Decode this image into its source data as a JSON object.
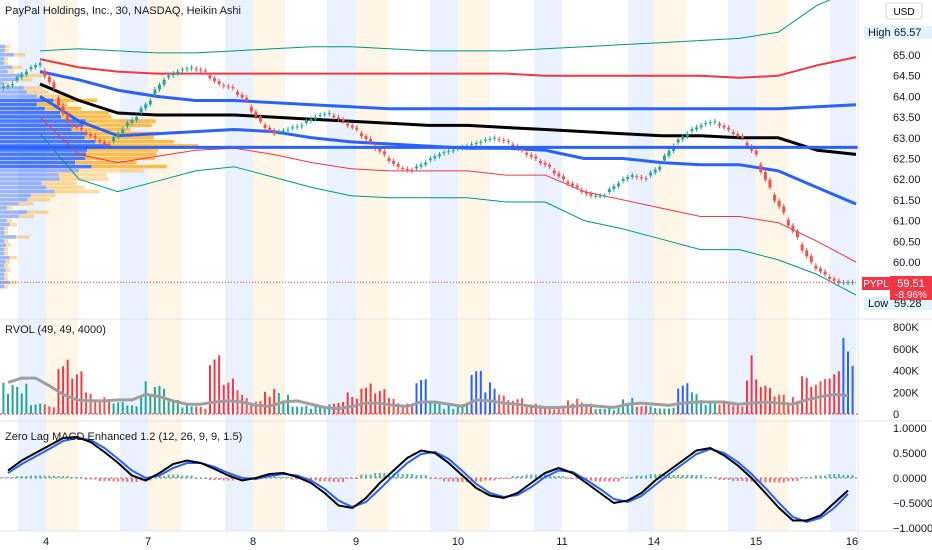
{
  "header": {
    "symbol_title": "PayPal Holdings, Inc., 30, NASDAQ, Heikin Ashi",
    "currency": "USD"
  },
  "price_panel": {
    "high_label": "High",
    "high_value": "65.57",
    "low_label": "Low",
    "low_value": "59.28",
    "ticker_badge": "PYPL",
    "last_price": "59.51",
    "change_pct": "-8.96%",
    "colors": {
      "up": "#26a69a",
      "down": "#ef5350",
      "badge": "#f23645"
    }
  },
  "rvol_panel": {
    "title": "RVOL (49, 49, 4000)",
    "axis_labels": [
      "800K",
      "600K",
      "400K",
      "200K",
      "0"
    ]
  },
  "macd_panel": {
    "title": "Zero Lag MACD Enhanced 1.2 (12, 26, 9, 9, 1.5)",
    "axis_labels": [
      "1.0000",
      "0.5000",
      "0.0000",
      "−0.5000",
      "−1.0000"
    ]
  },
  "time_axis": {
    "labels": [
      "4",
      "7",
      "8",
      "9",
      "10",
      "11",
      "14",
      "15",
      "16"
    ]
  },
  "chart_data": [
    {
      "type": "line",
      "name": "price",
      "candle_style": "Heikin Ashi",
      "y_ticks": [
        65.0,
        64.5,
        64.0,
        63.5,
        63.0,
        62.5,
        62.0,
        61.5,
        61.0,
        60.5,
        60.0
      ],
      "ylim": [
        59.0,
        66.0
      ],
      "x_labels": [
        "4",
        "7",
        "8",
        "9",
        "10",
        "11",
        "14",
        "15",
        "16"
      ],
      "close": [
        64.3,
        64.6,
        64.8,
        64.2,
        63.4,
        63.2,
        63.0,
        62.8,
        63.2,
        63.5,
        63.9,
        64.4,
        64.6,
        64.7,
        64.6,
        64.3,
        64.2,
        63.9,
        63.4,
        63.1,
        63.2,
        63.3,
        63.5,
        63.6,
        63.4,
        63.2,
        62.9,
        62.6,
        62.3,
        62.2,
        62.4,
        62.6,
        62.7,
        62.8,
        62.9,
        63.0,
        62.9,
        62.7,
        62.5,
        62.3,
        62.0,
        61.8,
        61.6,
        61.6,
        61.9,
        62.1,
        62.0,
        62.3,
        62.8,
        63.1,
        63.3,
        63.4,
        63.2,
        63.0,
        62.6,
        61.8,
        61.2,
        60.6,
        60.0,
        59.7,
        59.5,
        59.51
      ],
      "bands": [
        {
          "values": [
            65.1,
            65.15,
            65.1,
            65.05,
            65.05,
            65.1,
            65.15,
            65.2,
            65.2,
            65.15,
            65.1,
            65.1,
            65.1,
            65.15,
            65.2,
            65.25,
            65.3,
            65.35,
            65.4,
            65.55,
            66.2,
            66.6
          ],
          "color": "#009688"
        },
        {
          "values": [
            64.9,
            64.7,
            64.6,
            64.55,
            64.55,
            64.55,
            64.55,
            64.55,
            64.55,
            64.55,
            64.55,
            64.55,
            64.55,
            64.5,
            64.5,
            64.5,
            64.5,
            64.5,
            64.45,
            64.5,
            64.75,
            64.95
          ],
          "color": "#f23645"
        },
        {
          "values": [
            64.6,
            64.4,
            64.15,
            64.0,
            63.9,
            63.9,
            63.85,
            63.8,
            63.75,
            63.7,
            63.7,
            63.7,
            63.7,
            63.7,
            63.7,
            63.7,
            63.7,
            63.7,
            63.7,
            63.7,
            63.75,
            63.8
          ],
          "color": "#2962ff"
        },
        {
          "values": [
            64.3,
            63.9,
            63.6,
            63.55,
            63.55,
            63.55,
            63.5,
            63.45,
            63.4,
            63.35,
            63.3,
            63.3,
            63.25,
            63.2,
            63.15,
            63.1,
            63.05,
            63.05,
            63.0,
            63.0,
            62.7,
            62.6
          ],
          "color": "#000000"
        },
        {
          "values": [
            64.0,
            63.4,
            63.05,
            63.1,
            63.15,
            63.2,
            63.15,
            63.0,
            62.9,
            62.85,
            62.8,
            62.75,
            62.75,
            62.7,
            62.5,
            62.5,
            62.4,
            62.35,
            62.35,
            62.2,
            61.8,
            61.4
          ],
          "color": "#2962ff"
        },
        {
          "values": [
            63.5,
            62.6,
            62.4,
            62.55,
            62.7,
            62.75,
            62.6,
            62.4,
            62.25,
            62.2,
            62.2,
            62.2,
            62.1,
            62.1,
            61.7,
            61.5,
            61.3,
            61.1,
            61.1,
            60.95,
            60.5,
            60.0
          ],
          "color": "#f23645"
        },
        {
          "values": [
            63.1,
            62.0,
            61.7,
            61.95,
            62.2,
            62.3,
            62.05,
            61.8,
            61.6,
            61.55,
            61.55,
            61.55,
            61.45,
            61.45,
            61.0,
            60.8,
            60.55,
            60.3,
            60.3,
            60.05,
            59.7,
            59.2
          ],
          "color": "#009688"
        }
      ],
      "poc_level": 62.77
    },
    {
      "type": "bar",
      "name": "RVOL",
      "y_ticks": [
        800000,
        600000,
        400000,
        200000,
        0
      ],
      "ylim": [
        0,
        800000
      ],
      "values": [
        300000,
        280000,
        120000,
        90000,
        520000,
        410000,
        200000,
        160000,
        110000,
        80000,
        300000,
        260000,
        130000,
        90000,
        70000,
        560000,
        340000,
        220000,
        150000,
        230000,
        200000,
        120000,
        80000,
        90000,
        140000,
        200000,
        290000,
        240000,
        150000,
        100000,
        320000,
        120000,
        80000,
        90000,
        400000,
        300000,
        180000,
        150000,
        100000,
        80000,
        60000,
        140000,
        110000,
        80000,
        60000,
        150000,
        100000,
        70000,
        60000,
        300000,
        200000,
        120000,
        100000,
        80000,
        540000,
        260000,
        180000,
        160000,
        350000,
        330000,
        420000,
        700000
      ],
      "baseline": [
        290000,
        330000,
        330000,
        260000,
        180000,
        130000,
        120000,
        120000,
        130000,
        130000,
        180000,
        160000,
        120000,
        90000,
        90000,
        110000,
        120000,
        110000,
        80000,
        70000,
        110000,
        120000,
        90000,
        60000,
        50000,
        70000,
        100000,
        100000,
        80000,
        70000,
        110000,
        110000,
        90000,
        70000,
        130000,
        120000,
        100000,
        90000,
        70000,
        60000,
        60000,
        70000,
        80000,
        70000,
        60000,
        90000,
        100000,
        90000,
        80000,
        100000,
        110000,
        110000,
        110000,
        90000,
        100000,
        110000,
        100000,
        90000,
        130000,
        160000,
        180000,
        170000
      ]
    },
    {
      "type": "line",
      "name": "Zero Lag MACD",
      "y_ticks": [
        1.0,
        0.5,
        0.0,
        -0.5,
        -1.0
      ],
      "ylim": [
        -1.05,
        1.05
      ],
      "macd": [
        0.15,
        0.35,
        0.5,
        0.65,
        0.8,
        0.82,
        0.72,
        0.52,
        0.3,
        0.05,
        -0.05,
        0.1,
        0.28,
        0.35,
        0.3,
        0.18,
        0.05,
        -0.05,
        0.0,
        0.08,
        0.1,
        0.02,
        -0.1,
        -0.3,
        -0.55,
        -0.6,
        -0.4,
        -0.1,
        0.15,
        0.4,
        0.55,
        0.5,
        0.3,
        0.05,
        -0.2,
        -0.35,
        -0.4,
        -0.3,
        -0.1,
        0.1,
        0.2,
        0.1,
        -0.1,
        -0.3,
        -0.5,
        -0.45,
        -0.3,
        -0.05,
        0.15,
        0.35,
        0.55,
        0.6,
        0.45,
        0.25,
        0.0,
        -0.3,
        -0.6,
        -0.85,
        -0.85,
        -0.75,
        -0.5,
        -0.25
      ],
      "signal": [
        0.1,
        0.28,
        0.43,
        0.58,
        0.74,
        0.8,
        0.76,
        0.6,
        0.38,
        0.15,
        0.0,
        0.05,
        0.2,
        0.3,
        0.3,
        0.22,
        0.1,
        0.0,
        -0.02,
        0.04,
        0.08,
        0.05,
        -0.05,
        -0.22,
        -0.45,
        -0.58,
        -0.48,
        -0.22,
        0.05,
        0.3,
        0.48,
        0.52,
        0.38,
        0.14,
        -0.12,
        -0.3,
        -0.38,
        -0.34,
        -0.18,
        0.02,
        0.15,
        0.12,
        -0.04,
        -0.22,
        -0.42,
        -0.48,
        -0.36,
        -0.14,
        0.08,
        0.28,
        0.48,
        0.58,
        0.5,
        0.32,
        0.08,
        -0.2,
        -0.5,
        -0.78,
        -0.88,
        -0.8,
        -0.6,
        -0.32
      ],
      "histogram": [
        0.02,
        0.04,
        0.05,
        0.05,
        0.04,
        0.02,
        -0.03,
        -0.06,
        -0.07,
        -0.08,
        -0.05,
        0.04,
        0.07,
        0.05,
        0.0,
        -0.04,
        -0.05,
        -0.04,
        0.02,
        0.04,
        0.02,
        -0.03,
        -0.05,
        -0.07,
        -0.08,
        -0.02,
        0.07,
        0.1,
        0.09,
        0.08,
        0.06,
        -0.02,
        -0.07,
        -0.08,
        -0.07,
        -0.05,
        -0.02,
        0.04,
        0.07,
        0.07,
        0.04,
        -0.02,
        -0.05,
        -0.07,
        -0.07,
        0.02,
        0.05,
        0.08,
        0.06,
        0.06,
        0.06,
        0.02,
        -0.04,
        -0.06,
        -0.07,
        -0.09,
        -0.09,
        -0.06,
        0.02,
        0.05,
        0.08,
        0.06
      ]
    }
  ]
}
